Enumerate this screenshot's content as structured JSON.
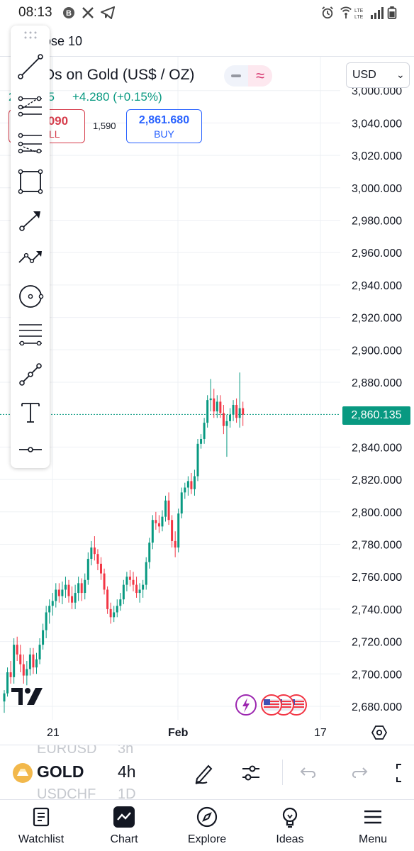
{
  "status_bar": {
    "time": "08:13",
    "icons": [
      "bitcoin-icon",
      "x-icon",
      "telegram-icon",
      "alarm-icon",
      "hotspot-icon",
      "lte-icon",
      "signal-icon",
      "battery-icon"
    ]
  },
  "header": {
    "title_partial": "ose 10"
  },
  "symbol": {
    "title_visible": "Ds on Gold (US$ / OZ)",
    "change_prefix": "2",
    "change_partial": "35",
    "change_full": "+4.280 (+0.15%)",
    "currency": "USD"
  },
  "trade": {
    "sell_price_partial": ".090",
    "sell_label_partial": "LL",
    "spread": "1,590",
    "buy_price": "2,861.680",
    "buy_label": "BUY"
  },
  "chart_data": {
    "type": "candlestick",
    "current_price": "2,860.135",
    "price_axis_labels": [
      "3,000.000",
      "3,040.000",
      "3,020.000",
      "3,000.000",
      "2,980.000",
      "2,960.000",
      "2,940.000",
      "2,920.000",
      "2,900.000",
      "2,880.000",
      "2,840.000",
      "2,820.000",
      "2,800.000",
      "2,780.000",
      "2,760.000",
      "2,740.000",
      "2,720.000",
      "2,700.000",
      "2,680.000"
    ],
    "time_axis_labels": [
      "21",
      "Feb",
      "17"
    ],
    "ylim": [
      2676,
      3062
    ],
    "colors": {
      "up": "#089981",
      "down": "#f23645",
      "price_line": "#089981",
      "grid": "#eef0f4"
    },
    "candles": [
      [
        2683,
        2690,
        2676,
        2688
      ],
      [
        2688,
        2704,
        2686,
        2701
      ],
      [
        2701,
        2708,
        2694,
        2698
      ],
      [
        2698,
        2722,
        2694,
        2718
      ],
      [
        2718,
        2723,
        2708,
        2712
      ],
      [
        2712,
        2718,
        2701,
        2706
      ],
      [
        2706,
        2712,
        2694,
        2699
      ],
      [
        2699,
        2708,
        2693,
        2703
      ],
      [
        2703,
        2716,
        2699,
        2712
      ],
      [
        2712,
        2716,
        2700,
        2704
      ],
      [
        2704,
        2713,
        2700,
        2709
      ],
      [
        2709,
        2722,
        2706,
        2718
      ],
      [
        2718,
        2731,
        2715,
        2727
      ],
      [
        2727,
        2742,
        2722,
        2738
      ],
      [
        2738,
        2746,
        2731,
        2742
      ],
      [
        2742,
        2750,
        2736,
        2745
      ],
      [
        2745,
        2756,
        2741,
        2752
      ],
      [
        2752,
        2756,
        2744,
        2748
      ],
      [
        2748,
        2757,
        2743,
        2752
      ],
      [
        2752,
        2760,
        2747,
        2755
      ],
      [
        2755,
        2758,
        2744,
        2748
      ],
      [
        2748,
        2754,
        2740,
        2744
      ],
      [
        2744,
        2755,
        2740,
        2750
      ],
      [
        2750,
        2760,
        2745,
        2756
      ],
      [
        2756,
        2759,
        2745,
        2750
      ],
      [
        2750,
        2762,
        2746,
        2758
      ],
      [
        2758,
        2775,
        2755,
        2771
      ],
      [
        2771,
        2782,
        2767,
        2778
      ],
      [
        2778,
        2785,
        2770,
        2774
      ],
      [
        2774,
        2777,
        2764,
        2768
      ],
      [
        2768,
        2772,
        2758,
        2762
      ],
      [
        2762,
        2765,
        2749,
        2752
      ],
      [
        2752,
        2754,
        2737,
        2740
      ],
      [
        2740,
        2744,
        2731,
        2735
      ],
      [
        2735,
        2742,
        2732,
        2738
      ],
      [
        2738,
        2746,
        2735,
        2742
      ],
      [
        2742,
        2750,
        2739,
        2746
      ],
      [
        2746,
        2758,
        2743,
        2755
      ],
      [
        2755,
        2763,
        2751,
        2760
      ],
      [
        2760,
        2764,
        2754,
        2758
      ],
      [
        2758,
        2763,
        2751,
        2755
      ],
      [
        2755,
        2760,
        2747,
        2750
      ],
      [
        2750,
        2756,
        2744,
        2752
      ],
      [
        2752,
        2758,
        2747,
        2755
      ],
      [
        2755,
        2772,
        2752,
        2769
      ],
      [
        2769,
        2784,
        2765,
        2781
      ],
      [
        2781,
        2798,
        2777,
        2795
      ],
      [
        2795,
        2800,
        2789,
        2793
      ],
      [
        2793,
        2798,
        2787,
        2791
      ],
      [
        2791,
        2801,
        2788,
        2797
      ],
      [
        2797,
        2810,
        2794,
        2807
      ],
      [
        2807,
        2812,
        2792,
        2795
      ],
      [
        2795,
        2798,
        2778,
        2782
      ],
      [
        2782,
        2788,
        2772,
        2778
      ],
      [
        2778,
        2802,
        2775,
        2799
      ],
      [
        2799,
        2815,
        2796,
        2812
      ],
      [
        2812,
        2818,
        2808,
        2815
      ],
      [
        2815,
        2822,
        2810,
        2819
      ],
      [
        2819,
        2824,
        2811,
        2814
      ],
      [
        2814,
        2826,
        2810,
        2822
      ],
      [
        2822,
        2845,
        2819,
        2842
      ],
      [
        2842,
        2848,
        2839,
        2845
      ],
      [
        2845,
        2858,
        2842,
        2855
      ],
      [
        2855,
        2872,
        2852,
        2869
      ],
      [
        2869,
        2882,
        2862,
        2870
      ],
      [
        2870,
        2876,
        2858,
        2862
      ],
      [
        2862,
        2872,
        2858,
        2868
      ],
      [
        2868,
        2872,
        2858,
        2861
      ],
      [
        2861,
        2866,
        2848,
        2853
      ],
      [
        2853,
        2860,
        2834,
        2856
      ],
      [
        2856,
        2864,
        2852,
        2860
      ],
      [
        2860,
        2869,
        2856,
        2866
      ],
      [
        2866,
        2870,
        2855,
        2858
      ],
      [
        2858,
        2886,
        2852,
        2864
      ],
      [
        2864,
        2868,
        2853,
        2860
      ]
    ]
  },
  "draw_toolbar": {
    "tools": [
      "trend-line-tool",
      "pitchfork-tool",
      "fib-retracement-tool",
      "rectangle-tool",
      "arrow-tool",
      "path-tool",
      "circle-tool",
      "parallel-lines-tool",
      "measure-tool",
      "text-tool",
      "horizontal-line-tool"
    ]
  },
  "controls": {
    "symbol": "GOLD",
    "interval": "4h",
    "ghost_prev_symbol": "EURUSD",
    "ghost_prev_interval": "3h",
    "ghost_next_symbol": "USDCHF",
    "ghost_next_interval": "1D"
  },
  "tabs": [
    {
      "label": "Watchlist",
      "icon": "watchlist-icon"
    },
    {
      "label": "Chart",
      "icon": "chart-icon"
    },
    {
      "label": "Explore",
      "icon": "compass-icon"
    },
    {
      "label": "Ideas",
      "icon": "lightbulb-icon"
    },
    {
      "label": "Menu",
      "icon": "hamburger-icon"
    }
  ]
}
